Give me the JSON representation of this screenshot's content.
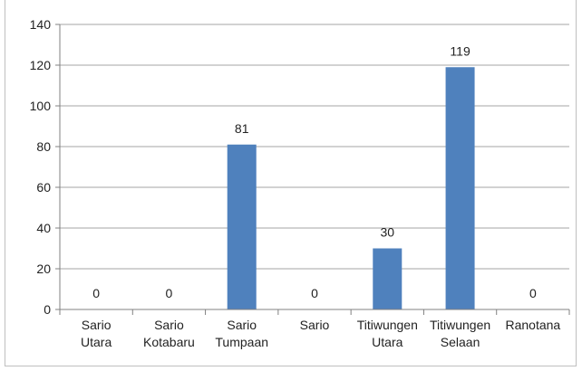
{
  "chart_data": {
    "type": "bar",
    "categories": [
      [
        "Sario",
        "Utara"
      ],
      [
        "Sario",
        "Kotabaru"
      ],
      [
        "Sario",
        "Tumpaan"
      ],
      [
        "Sario"
      ],
      [
        "Titiwungen",
        "Utara"
      ],
      [
        "Titiwungen",
        "Selaan"
      ],
      [
        "Ranotana"
      ]
    ],
    "values": [
      0,
      0,
      81,
      0,
      30,
      119,
      0
    ],
    "data_labels": [
      "0",
      "0",
      "81",
      "0",
      "30",
      "119",
      "0"
    ],
    "ylim": [
      0,
      140
    ],
    "yticks": [
      0,
      20,
      40,
      60,
      80,
      100,
      120,
      140
    ],
    "title": "",
    "xlabel": "",
    "ylabel": "",
    "grid": true,
    "legend": "none",
    "colors": {
      "bar": "#4f81bd",
      "grid": "#a6a6a6",
      "axis": "#808080",
      "text": "#222222"
    }
  }
}
